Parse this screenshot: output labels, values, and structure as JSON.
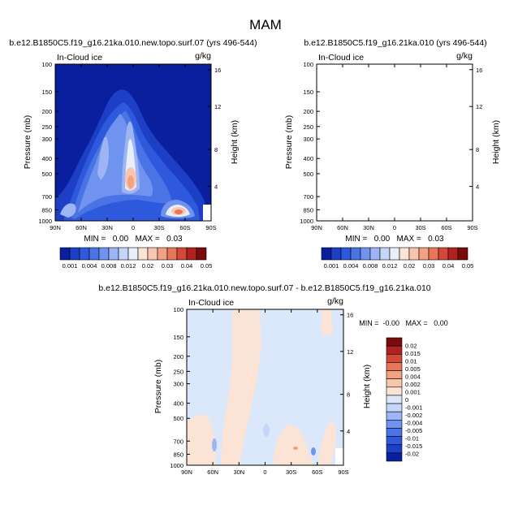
{
  "figure": {
    "title": "MAM"
  },
  "colors": {
    "scale_abs": [
      "#0a1f9e",
      "#1c3fc6",
      "#2f59dc",
      "#4a74e6",
      "#6f93ee",
      "#9db5f4",
      "#c6d6f8",
      "#e9eefb",
      "#fbe3d6",
      "#f7c6ad",
      "#f2a182",
      "#e8775a",
      "#d24a37",
      "#b02220",
      "#7a0b0b"
    ],
    "scale_diff": [
      "#0a1f9e",
      "#1c3fc6",
      "#2f59dc",
      "#4a74e6",
      "#6f93ee",
      "#9db5f4",
      "#c6d6f8",
      "#dbe8fb",
      "#fbe3d6",
      "#f7c6ad",
      "#f2a182",
      "#e8775a",
      "#d24a37",
      "#b02220",
      "#7a0b0b"
    ]
  },
  "chart_data": [
    {
      "type": "heatmap",
      "title": "b.e12.B1850C5.f19_g16.21ka.010.new.topo.surf.07 (yrs 496-544)",
      "left_label": "In-Cloud ice",
      "right_label": "g/kg",
      "ylabel": "Pressure (mb)",
      "ylabel_right": "Height (km)",
      "xticks": [
        "90N",
        "60N",
        "30N",
        "0",
        "30S",
        "60S",
        "90S"
      ],
      "yticks": [
        "100",
        "150",
        "200",
        "250",
        "300",
        "400",
        "500",
        "700",
        "850",
        "1000"
      ],
      "yticks_right": [
        "16",
        "12",
        "8",
        "4"
      ],
      "stats": "MIN =   0.00   MAX =   0.03",
      "colorbar_labels": [
        "0.001",
        "0.004",
        "0.008",
        "0.012",
        "0.02",
        "0.03",
        "0.04",
        "0.05"
      ],
      "colorbar_orientation": "horizontal",
      "xlim": [
        90,
        -90
      ],
      "ylim": [
        100,
        1000
      ],
      "y_scale": "log-pressure"
    },
    {
      "type": "heatmap",
      "title": "b.e12.B1850C5.f19_g16.21ka.010 (yrs 496-544)",
      "left_label": "In-Cloud ice",
      "right_label": "g/kg",
      "ylabel": "Pressure (mb)",
      "ylabel_right": "Height (km)",
      "xticks": [
        "90N",
        "60N",
        "30N",
        "0",
        "30S",
        "60S",
        "90S"
      ],
      "yticks": [
        "100",
        "150",
        "200",
        "250",
        "300",
        "400",
        "500",
        "700",
        "850",
        "1000"
      ],
      "yticks_right": [
        "16",
        "12",
        "8",
        "4"
      ],
      "stats": "MIN =   0.00   MAX =   0.03",
      "colorbar_labels": [
        "0.001",
        "0.004",
        "0.008",
        "0.012",
        "0.02",
        "0.03",
        "0.04",
        "0.05"
      ],
      "colorbar_orientation": "horizontal",
      "xlim": [
        90,
        -90
      ],
      "ylim": [
        100,
        1000
      ],
      "y_scale": "log-pressure"
    },
    {
      "type": "heatmap",
      "title": "b.e12.B1850C5.f19_g16.21ka.010.new.topo.surf.07 - b.e12.B1850C5.f19_g16.21ka.010",
      "left_label": "In-Cloud ice",
      "right_label": "g/kg",
      "ylabel": "Pressure (mb)",
      "ylabel_right": "Height (km)",
      "xticks": [
        "90N",
        "60N",
        "30N",
        "0",
        "30S",
        "60S",
        "90S"
      ],
      "yticks": [
        "100",
        "150",
        "200",
        "250",
        "300",
        "400",
        "500",
        "700",
        "850",
        "1000"
      ],
      "yticks_right": [
        "16",
        "12",
        "8",
        "4"
      ],
      "stats": "MIN =  -0.00   MAX =   0.00",
      "colorbar_labels": [
        "0.02",
        "0.015",
        "0.01",
        "0.005",
        "0.004",
        "0.002",
        "0.001",
        "0",
        "-0.001",
        "-0.002",
        "-0.004",
        "-0.005",
        "-0.01",
        "-0.015",
        "-0.02"
      ],
      "colorbar_orientation": "vertical",
      "xlim": [
        90,
        -90
      ],
      "ylim": [
        100,
        1000
      ],
      "y_scale": "log-pressure"
    }
  ]
}
